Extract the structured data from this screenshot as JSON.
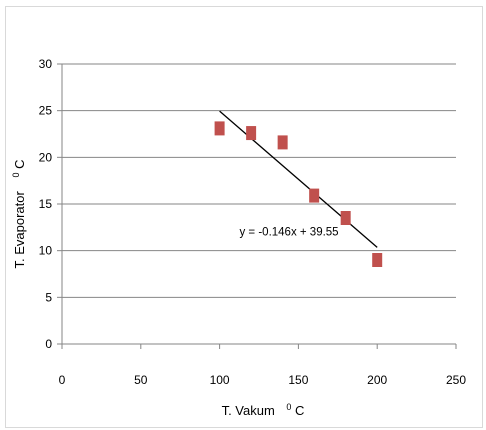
{
  "chart_data": {
    "type": "scatter",
    "x": [
      100,
      120,
      140,
      160,
      180,
      200
    ],
    "y": [
      23.1,
      22.6,
      21.6,
      15.9,
      13.5,
      9.0
    ],
    "marker_color": "#c0504d",
    "xlim": [
      0,
      250
    ],
    "ylim": [
      0,
      30
    ],
    "x_ticks": [
      0,
      50,
      100,
      150,
      200,
      250
    ],
    "y_ticks": [
      0,
      5,
      10,
      15,
      20,
      25,
      30
    ],
    "xlabel": "T. Vakum",
    "xlabel_unit_sup": "0",
    "xlabel_unit": "C",
    "ylabel": "T. Evaporator",
    "ylabel_unit_sup": "0",
    "ylabel_unit": "C",
    "grid": "horizontal",
    "trendline": {
      "type": "linear",
      "slope": -0.146,
      "intercept": 39.55,
      "x_range": [
        100,
        200
      ],
      "color": "#000000",
      "equation_text": "y = -0.146x + 39.55",
      "equation_x": 138,
      "equation_y": 11.6
    }
  }
}
